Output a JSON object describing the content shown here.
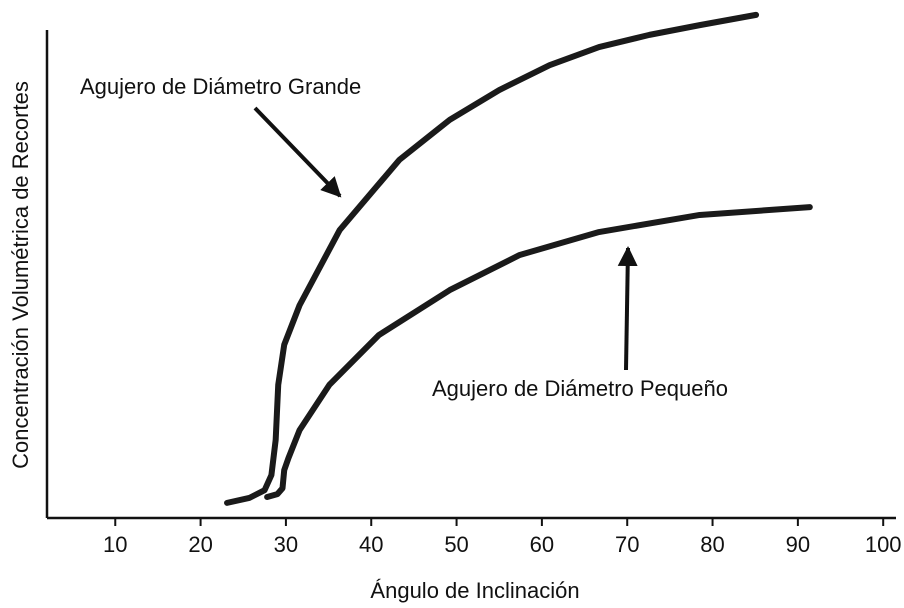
{
  "chart_data": {
    "type": "line",
    "xlabel": "Ángulo de Inclinación",
    "ylabel": "Concentración Volumétrica de Recortes",
    "xlim": [
      2,
      101.5
    ],
    "xticks": [
      10,
      20,
      30,
      40,
      50,
      60,
      70,
      80,
      90,
      100
    ],
    "ylim": [
      0,
      100
    ],
    "annotations": [
      "Agujero de Diámetro Grande",
      "Agujero de Diámetro Pequeño"
    ],
    "series": [
      {
        "name": "Agujero de Diámetro Grande",
        "color": "#1a1a1a",
        "x": [
          23.1,
          25.7,
          27.5,
          28.3,
          28.8,
          29.1,
          29.8,
          31.6,
          36.3,
          43.3,
          49.2,
          55.0,
          60.9,
          66.7,
          72.6,
          78.5,
          85.1
        ],
        "values": [
          3.1,
          4.1,
          5.7,
          8.8,
          16.0,
          27.3,
          35.5,
          43.6,
          59.0,
          73.4,
          81.6,
          87.7,
          92.8,
          96.5,
          99.0,
          101.0,
          103.1
        ]
      },
      {
        "name": "Agujero de Diámetro Pequeño",
        "color": "#1a1a1a",
        "x": [
          27.8,
          29.0,
          29.6,
          29.8,
          30.3,
          31.6,
          35.1,
          40.9,
          49.2,
          57.4,
          66.7,
          78.5,
          91.4
        ],
        "values": [
          4.3,
          4.9,
          6.1,
          9.8,
          12.3,
          18.0,
          27.3,
          37.5,
          46.7,
          53.9,
          58.6,
          62.1,
          63.7
        ]
      }
    ]
  }
}
